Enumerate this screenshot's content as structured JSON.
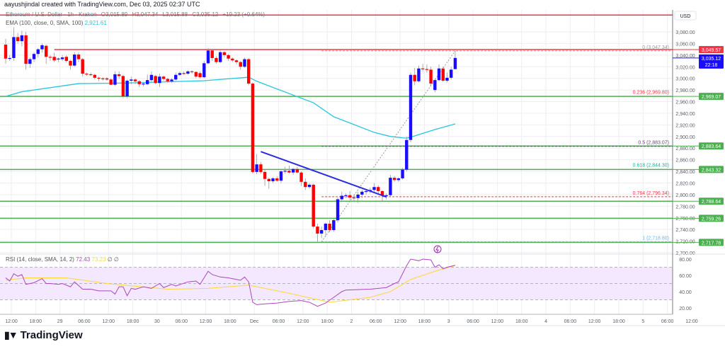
{
  "header": {
    "attribution": "aayushjindal created with TradingView.com, Dec 03, 2025 02:37 UTC"
  },
  "legend": {
    "symbol": "Ethereum / U.S. Dollar · 1h · Kraken",
    "open": "O3,015.89",
    "high": "H3,047.34",
    "low": "L3,015.88",
    "close": "C3,035.12",
    "change": "+19.23 (+0.64%)"
  },
  "ema_legend": {
    "label": "EMA (100, close, 0, SMA, 100)",
    "value": "2,921.61"
  },
  "rsi_legend": {
    "label": "RSI (14, close, SMA, 14, 2)",
    "value": "72.43",
    "sma_value": "73.23",
    "extra1": "∅",
    "extra2": "∅"
  },
  "footer": {
    "brand": "TradingView",
    "logo_mark": "17"
  },
  "colors": {
    "up": "#1a0dff",
    "down": "#ff0000",
    "ema": "#26c6da",
    "support": "#4caf50",
    "resistance": "#f23645",
    "trend": "#2b2bdf",
    "rsi": "#ab47bc",
    "rsi_sma": "#fdd835"
  },
  "price_axis": {
    "currency": "USD",
    "labels": [
      "3,080.00",
      "3,060.00",
      "3,040.00",
      "3,020.00",
      "3,000.00",
      "2,980.00",
      "2,960.00",
      "2,940.00",
      "2,920.00",
      "2,900.00",
      "2,880.00",
      "2,860.00",
      "2,840.00",
      "2,820.00",
      "2,800.00",
      "2,780.00",
      "2,760.00",
      "2,740.00",
      "2,720.00",
      "2,700.00"
    ],
    "tags": [
      {
        "text": "3,049.57",
        "price": 3049.57,
        "color": "#f23645"
      },
      {
        "text": "3,035.12",
        "sub": "22:18",
        "price": 3035.12,
        "color": "#1a0dff"
      },
      {
        "text": "2,969.07",
        "price": 2969.07,
        "color": "#4caf50"
      },
      {
        "text": "2,883.64",
        "price": 2883.64,
        "color": "#4caf50"
      },
      {
        "text": "2,843.32",
        "price": 2843.32,
        "color": "#4caf50"
      },
      {
        "text": "2,788.64",
        "price": 2788.64,
        "color": "#4caf50"
      },
      {
        "text": "2,759.26",
        "price": 2759.26,
        "color": "#4caf50"
      },
      {
        "text": "2,717.78",
        "price": 2717.78,
        "color": "#4caf50"
      }
    ]
  },
  "rsi_axis": {
    "labels": [
      "80.00",
      "60.00",
      "40.00",
      "20.00"
    ]
  },
  "time_axis": {
    "labels": [
      "12:00",
      "18:00",
      "29",
      "06:00",
      "12:00",
      "18:00",
      "30",
      "06:00",
      "12:00",
      "18:00",
      "Dec",
      "06:00",
      "12:00",
      "18:00",
      "2",
      "06:00",
      "12:00",
      "18:00",
      "3",
      "06:00",
      "12:00",
      "18:00",
      "4",
      "06:00",
      "12:00",
      "18:00",
      "5",
      "06:00",
      "12:00"
    ]
  },
  "fib_levels": [
    {
      "label": "0 (3,047.34)",
      "price": 3047.34,
      "color": "#9598a1",
      "dashed": true
    },
    {
      "label": "0.236 (2,969.80)",
      "price": 2969.8,
      "color": "#f23645",
      "dashed": false
    },
    {
      "label": "0.5 (2,883.07)",
      "price": 2883.07,
      "color": "#5d4a6b",
      "dashed": true
    },
    {
      "label": "0.618 (2,844.30)",
      "price": 2844.3,
      "color": "#22ab94",
      "dashed": false
    },
    {
      "label": "0.764 (2,796.34)",
      "price": 2796.34,
      "color": "#f23645",
      "dashed": true
    },
    {
      "label": "1 (2,718.80)",
      "price": 2718.8,
      "color": "#64b5f6",
      "dashed": true
    }
  ],
  "chart_data": {
    "type": "candlestick",
    "title": "Ethereum / U.S. Dollar · 1h · Kraken",
    "ylabel": "USD",
    "ylim": [
      2700,
      3080
    ],
    "candles_ohlc": [
      [
        3058,
        3068,
        3025,
        3034
      ],
      [
        3034,
        3040,
        3030,
        3035
      ],
      [
        3035,
        3088,
        3030,
        3071
      ],
      [
        3071,
        3078,
        3060,
        3064
      ],
      [
        3064,
        3082,
        3055,
        3074
      ],
      [
        3074,
        3080,
        3015,
        3025
      ],
      [
        3025,
        3036,
        3018,
        3033
      ],
      [
        3033,
        3045,
        3028,
        3042
      ],
      [
        3042,
        3052,
        3036,
        3050
      ],
      [
        3050,
        3060,
        3044,
        3057
      ],
      [
        3056,
        3058,
        3025,
        3037
      ],
      [
        3037,
        3040,
        3030,
        3036
      ],
      [
        3037,
        3044,
        3028,
        3031
      ],
      [
        3033,
        3036,
        3028,
        3034
      ],
      [
        3033,
        3040,
        3030,
        3036
      ],
      [
        3037,
        3040,
        3027,
        3030
      ],
      [
        3030,
        3032,
        3015,
        3022
      ],
      [
        3022,
        3045,
        3020,
        3041
      ],
      [
        3041,
        3044,
        3028,
        3033
      ],
      [
        3033,
        3035,
        3003,
        3008
      ],
      [
        3008,
        3010,
        3004,
        3007
      ],
      [
        3007,
        3010,
        3004,
        3006
      ],
      [
        3006,
        3008,
        2998,
        3001
      ],
      [
        3001,
        3003,
        2995,
        3000
      ],
      [
        3000,
        3002,
        2996,
        2999
      ],
      [
        3000,
        3002,
        2996,
        2998
      ],
      [
        2998,
        3000,
        2988,
        2989
      ],
      [
        2989,
        3012,
        2987,
        3007
      ],
      [
        3007,
        3012,
        2999,
        3004
      ],
      [
        3004,
        3006,
        2966,
        2969
      ],
      [
        2969,
        2998,
        2966,
        2996
      ],
      [
        2996,
        3003,
        2990,
        2998
      ],
      [
        2998,
        3000,
        2990,
        2995
      ],
      [
        2995,
        2997,
        2985,
        2990
      ],
      [
        2990,
        2993,
        2986,
        2991
      ],
      [
        2990,
        3007,
        2988,
        2997
      ],
      [
        2997,
        3012,
        2992,
        3006
      ],
      [
        3004,
        3006,
        2990,
        2992
      ],
      [
        2992,
        3008,
        2985,
        3003
      ],
      [
        3003,
        3005,
        2996,
        2999
      ],
      [
        2999,
        3001,
        2992,
        2995
      ],
      [
        2995,
        3000,
        2992,
        2998
      ],
      [
        2998,
        3010,
        2996,
        3006
      ],
      [
        3006,
        3012,
        3004,
        3009
      ],
      [
        3009,
        3012,
        3006,
        3008
      ],
      [
        3008,
        3014,
        3006,
        3012
      ],
      [
        3012,
        3014,
        3008,
        3011
      ],
      [
        3011,
        3012,
        3000,
        3003
      ],
      [
        3009,
        3012,
        3000,
        3002
      ],
      [
        3002,
        3030,
        3000,
        3026
      ],
      [
        3026,
        3052,
        3024,
        3048
      ],
      [
        3048,
        3050,
        3030,
        3035
      ],
      [
        3035,
        3038,
        3025,
        3028
      ],
      [
        3028,
        3048,
        3026,
        3045
      ],
      [
        3045,
        3047,
        3036,
        3040
      ],
      [
        3040,
        3042,
        3030,
        3034
      ],
      [
        3034,
        3036,
        3028,
        3031
      ],
      [
        3031,
        3033,
        3024,
        3028
      ],
      [
        3028,
        3030,
        3015,
        3020
      ],
      [
        3020,
        3036,
        3018,
        3033
      ],
      [
        3033,
        3035,
        2988,
        2991
      ],
      [
        2991,
        2993,
        2836,
        2839
      ],
      [
        2839,
        2870,
        2835,
        2852
      ],
      [
        2852,
        2856,
        2836,
        2839
      ],
      [
        2839,
        2842,
        2815,
        2827
      ],
      [
        2827,
        2829,
        2810,
        2823
      ],
      [
        2823,
        2830,
        2820,
        2828
      ],
      [
        2828,
        2832,
        2822,
        2824
      ],
      [
        2824,
        2842,
        2820,
        2840
      ],
      [
        2840,
        2848,
        2836,
        2841
      ],
      [
        2841,
        2850,
        2836,
        2838
      ],
      [
        2838,
        2846,
        2834,
        2844
      ],
      [
        2844,
        2848,
        2836,
        2838
      ],
      [
        2838,
        2840,
        2815,
        2822
      ],
      [
        2822,
        2828,
        2808,
        2813
      ],
      [
        2813,
        2820,
        2810,
        2817
      ],
      [
        2817,
        2819,
        2742,
        2745
      ],
      [
        2745,
        2750,
        2719,
        2733
      ],
      [
        2733,
        2745,
        2725,
        2739
      ],
      [
        2739,
        2752,
        2728,
        2750
      ],
      [
        2750,
        2756,
        2735,
        2739
      ],
      [
        2739,
        2758,
        2736,
        2756
      ],
      [
        2756,
        2795,
        2752,
        2792
      ],
      [
        2792,
        2805,
        2788,
        2798
      ],
      [
        2798,
        2802,
        2794,
        2799
      ],
      [
        2799,
        2806,
        2790,
        2795
      ],
      [
        2795,
        2800,
        2787,
        2794
      ],
      [
        2794,
        2805,
        2786,
        2800
      ],
      [
        2800,
        2808,
        2794,
        2805
      ],
      [
        2805,
        2810,
        2800,
        2806
      ],
      [
        2806,
        2812,
        2802,
        2808
      ],
      [
        2808,
        2820,
        2804,
        2813
      ],
      [
        2813,
        2816,
        2800,
        2806
      ],
      [
        2806,
        2808,
        2788,
        2798
      ],
      [
        2798,
        2802,
        2792,
        2799
      ],
      [
        2799,
        2834,
        2797,
        2829
      ],
      [
        2829,
        2832,
        2822,
        2825
      ],
      [
        2825,
        2830,
        2822,
        2828
      ],
      [
        2828,
        2846,
        2826,
        2843
      ],
      [
        2843,
        2900,
        2840,
        2894
      ],
      [
        2894,
        3010,
        2890,
        3006
      ],
      [
        3006,
        3018,
        2988,
        2995
      ],
      [
        2995,
        3022,
        2993,
        3017
      ],
      [
        3017,
        3025,
        3012,
        3016
      ],
      [
        3016,
        3024,
        3010,
        3015
      ],
      [
        3015,
        3020,
        2986,
        2991
      ],
      [
        2980,
        2999,
        2976,
        2997
      ],
      [
        2997,
        3024,
        2995,
        3017
      ],
      [
        3017,
        3020,
        2994,
        2996
      ],
      [
        2996,
        3010,
        2993,
        3001
      ],
      [
        3001,
        3020,
        2998,
        3015
      ],
      [
        3015.89,
        3047.34,
        3015.88,
        3035.12
      ]
    ],
    "ema_100": [
      [
        0,
        2969
      ],
      [
        4,
        2977
      ],
      [
        18,
        2991
      ],
      [
        30,
        2992
      ],
      [
        49,
        2996
      ],
      [
        60,
        3002
      ],
      [
        62,
        2995
      ],
      [
        76,
        2958
      ],
      [
        81,
        2934
      ],
      [
        91,
        2907
      ],
      [
        95,
        2900
      ],
      [
        99,
        2897
      ],
      [
        101,
        2901
      ],
      [
        106,
        2912
      ],
      [
        111,
        2921.61
      ]
    ],
    "horizontal_supports": [
      2969.07,
      2883.64,
      2843.32,
      2788.64,
      2759.26,
      2717.78
    ],
    "resistance_lines": [
      {
        "price": 3049.57,
        "from_candle": 12
      },
      {
        "price": 3109,
        "from_candle": 0
      }
    ],
    "trendline": {
      "from": [
        63,
        2874
      ],
      "to": [
        94,
        2796
      ]
    },
    "fib_anchor": {
      "from": [
        78,
        2718.8
      ],
      "to": [
        111,
        3047.34
      ]
    },
    "rsi": {
      "ylim": [
        10,
        90
      ],
      "bands": [
        30,
        50,
        70
      ],
      "values": [
        [
          0,
          57
        ],
        [
          1,
          53
        ],
        [
          2,
          62
        ],
        [
          3,
          59
        ],
        [
          4,
          61
        ],
        [
          5,
          49
        ],
        [
          7,
          51
        ],
        [
          9,
          56
        ],
        [
          10,
          50
        ],
        [
          11,
          50
        ],
        [
          13,
          49
        ],
        [
          14,
          50
        ],
        [
          16,
          46
        ],
        [
          17,
          52
        ],
        [
          19,
          43
        ],
        [
          21,
          43
        ],
        [
          23,
          41
        ],
        [
          26,
          41
        ],
        [
          27,
          37
        ],
        [
          28,
          46
        ],
        [
          29,
          46
        ],
        [
          30,
          35
        ],
        [
          31,
          44
        ],
        [
          32,
          43
        ],
        [
          34,
          46
        ],
        [
          36,
          44
        ],
        [
          38,
          50
        ],
        [
          39,
          45
        ],
        [
          41,
          49
        ],
        [
          42,
          47
        ],
        [
          45,
          52
        ],
        [
          47,
          53
        ],
        [
          48,
          49
        ],
        [
          50,
          65
        ],
        [
          51,
          61
        ],
        [
          53,
          58
        ],
        [
          55,
          57
        ],
        [
          58,
          54
        ],
        [
          59,
          58
        ],
        [
          60,
          52
        ],
        [
          61,
          27
        ],
        [
          62,
          24
        ],
        [
          64,
          25
        ],
        [
          67,
          26
        ],
        [
          70,
          28
        ],
        [
          73,
          29
        ],
        [
          75,
          27
        ],
        [
          77,
          22
        ],
        [
          79,
          26
        ],
        [
          83,
          40
        ],
        [
          84,
          42
        ],
        [
          90,
          43
        ],
        [
          94,
          45
        ],
        [
          96,
          50
        ],
        [
          97,
          52
        ],
        [
          99,
          72
        ],
        [
          100,
          80
        ],
        [
          102,
          78
        ],
        [
          103,
          80
        ],
        [
          105,
          79
        ],
        [
          106,
          70
        ],
        [
          107,
          73
        ],
        [
          108,
          68
        ],
        [
          109,
          70
        ],
        [
          111,
          72.43
        ]
      ],
      "sma": [
        [
          0,
          54
        ],
        [
          5,
          57
        ],
        [
          15,
          57
        ],
        [
          25,
          50
        ],
        [
          40,
          43
        ],
        [
          50,
          44
        ],
        [
          60,
          48
        ],
        [
          70,
          38
        ],
        [
          80,
          27
        ],
        [
          90,
          33
        ],
        [
          95,
          40
        ],
        [
          100,
          55
        ],
        [
          106,
          65
        ],
        [
          111,
          72
        ]
      ]
    }
  }
}
